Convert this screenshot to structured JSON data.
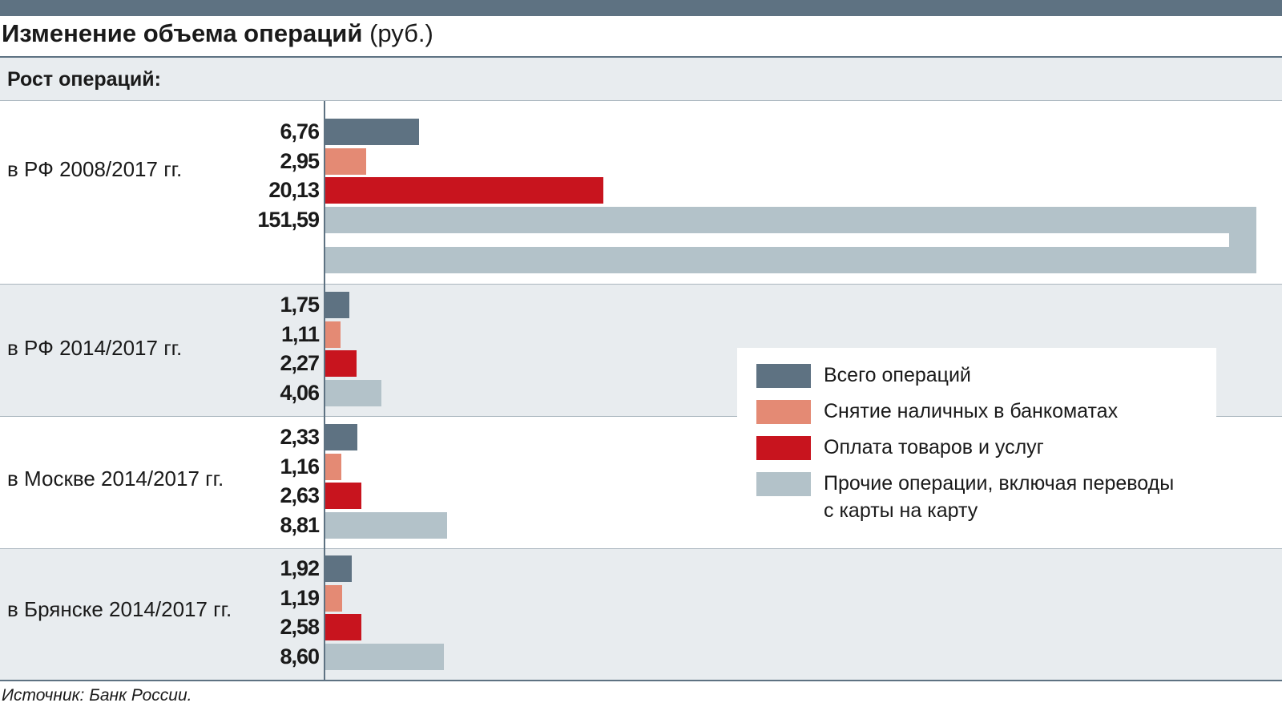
{
  "header": {
    "title_bold": "Изменение объема операций",
    "title_unit": "(руб.)",
    "subtitle": "Рост операций:"
  },
  "footer": {
    "source": "Источник: Банк России."
  },
  "colors": {
    "total": "#5e7282",
    "atm": "#e48a74",
    "payments": "#c8141e",
    "other": "#b3c2c9",
    "band_shaded": "#e8ecef",
    "band_white": "#ffffff"
  },
  "legend": {
    "items": [
      {
        "label": "Всего операций",
        "color": "#5e7282"
      },
      {
        "label": "Снятие наличных в банкоматах",
        "color": "#e48a74"
      },
      {
        "label": "Оплата товаров и услуг",
        "color": "#c8141e"
      },
      {
        "label": "Прочие операции, включая переводы",
        "label2": "с карты на карту",
        "color": "#b3c2c9"
      }
    ]
  },
  "chart_data": {
    "type": "bar",
    "orientation": "horizontal",
    "categories": [
      "в РФ 2008/2017 гг.",
      "в РФ 2014/2017 гг.",
      "в Москве 2014/2017 гг.",
      "в Брянске 2014/2017 гг."
    ],
    "series": [
      {
        "name": "Всего операций",
        "values": [
          6.76,
          1.75,
          2.33,
          1.92
        ],
        "labels": [
          "6,76",
          "1,75",
          "2,33",
          "1,92"
        ]
      },
      {
        "name": "Снятие наличных в банкоматах",
        "values": [
          2.95,
          1.11,
          1.16,
          1.19
        ],
        "labels": [
          "2,95",
          "1,11",
          "1,16",
          "1,19"
        ]
      },
      {
        "name": "Оплата товаров и услуг",
        "values": [
          20.13,
          2.27,
          2.63,
          2.58
        ],
        "labels": [
          "20,13",
          "2,27",
          "2,63",
          "2,58"
        ]
      },
      {
        "name": "Прочие операции, включая переводы с карты на карту",
        "values": [
          151.59,
          4.06,
          8.81,
          8.6
        ],
        "labels": [
          "151,59",
          "4,06",
          "8,81",
          "8,60"
        ]
      }
    ],
    "broken_bar": {
      "category_index": 0,
      "series_index": 3
    },
    "grid": false,
    "legend_position": "right"
  }
}
